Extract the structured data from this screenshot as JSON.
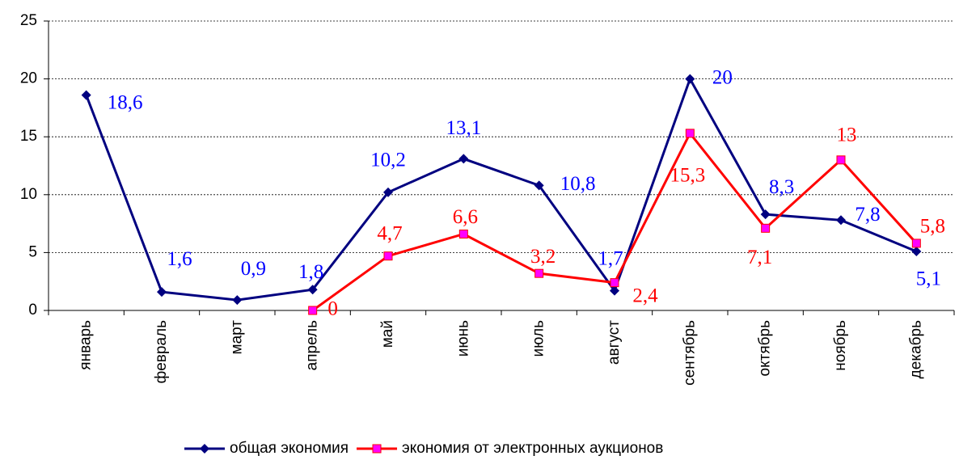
{
  "chart_data": {
    "type": "line",
    "categories": [
      "январь",
      "февраль",
      "март",
      "апрель",
      "май",
      "июнь",
      "июль",
      "август",
      "сентябрь",
      "октябрь",
      "ноябрь",
      "декабрь"
    ],
    "series": [
      {
        "name": "общая экономия",
        "color": "#000080",
        "values": [
          18.6,
          1.6,
          0.9,
          1.8,
          10.2,
          13.1,
          10.8,
          1.7,
          20,
          8.3,
          7.8,
          5.1
        ],
        "value_labels": [
          "18,6",
          "1,6",
          "0,9",
          "1,8",
          "10,2",
          "13,1",
          "10,8",
          "1,7",
          "20",
          "8,3",
          "7,8",
          "5,1"
        ],
        "label_color": "#0000ff"
      },
      {
        "name": "экономия от электронных аукционов",
        "color": "#ff0000",
        "values": [
          null,
          null,
          null,
          0,
          4.7,
          6.6,
          3.2,
          2.4,
          15.3,
          7.1,
          13,
          5.8
        ],
        "value_labels": [
          null,
          null,
          null,
          "0",
          "4,7",
          "6,6",
          "3,2",
          "2,4",
          "15,3",
          "7,1",
          "13",
          "5,8"
        ],
        "label_color": "#ff0000",
        "marker_fill": "#ff00ff"
      }
    ],
    "ylim": [
      0,
      25
    ],
    "yticks": [
      0,
      5,
      10,
      15,
      20,
      25
    ],
    "grid": true,
    "legend": "bottom"
  }
}
